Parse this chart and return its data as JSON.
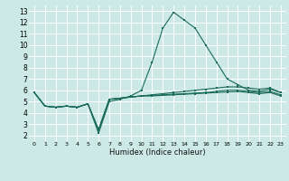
{
  "title": "",
  "xlabel": "Humidex (Indice chaleur)",
  "bg_color": "#cce9e5",
  "grid_color": "#ffffff",
  "line_color": "#1a6b5a",
  "xlim": [
    -0.5,
    23.5
  ],
  "ylim": [
    1.5,
    13.5
  ],
  "xticks": [
    0,
    1,
    2,
    3,
    4,
    5,
    6,
    7,
    8,
    9,
    10,
    11,
    12,
    13,
    14,
    15,
    16,
    17,
    18,
    19,
    20,
    21,
    22,
    23
  ],
  "yticks": [
    2,
    3,
    4,
    5,
    6,
    7,
    8,
    9,
    10,
    11,
    12,
    13
  ],
  "series": [
    [
      5.8,
      4.6,
      4.5,
      4.6,
      4.5,
      4.8,
      2.2,
      5.0,
      5.2,
      5.5,
      6.0,
      8.5,
      11.5,
      12.9,
      12.2,
      11.5,
      10.0,
      8.5,
      7.0,
      6.5,
      6.0,
      5.9,
      6.1,
      5.8
    ],
    [
      5.8,
      4.6,
      4.5,
      4.6,
      4.5,
      4.8,
      2.5,
      5.2,
      5.3,
      5.4,
      5.5,
      5.6,
      5.7,
      5.8,
      5.9,
      6.0,
      6.1,
      6.2,
      6.3,
      6.3,
      6.2,
      6.1,
      6.2,
      5.8
    ],
    [
      5.8,
      4.6,
      4.5,
      4.6,
      4.5,
      4.8,
      2.5,
      5.2,
      5.3,
      5.4,
      5.5,
      5.55,
      5.6,
      5.65,
      5.7,
      5.75,
      5.8,
      5.9,
      6.0,
      6.0,
      5.9,
      5.8,
      5.9,
      5.6
    ],
    [
      5.8,
      4.6,
      4.5,
      4.6,
      4.5,
      4.8,
      2.5,
      5.2,
      5.3,
      5.4,
      5.5,
      5.5,
      5.55,
      5.6,
      5.65,
      5.7,
      5.75,
      5.8,
      5.85,
      5.9,
      5.8,
      5.7,
      5.8,
      5.5
    ]
  ]
}
